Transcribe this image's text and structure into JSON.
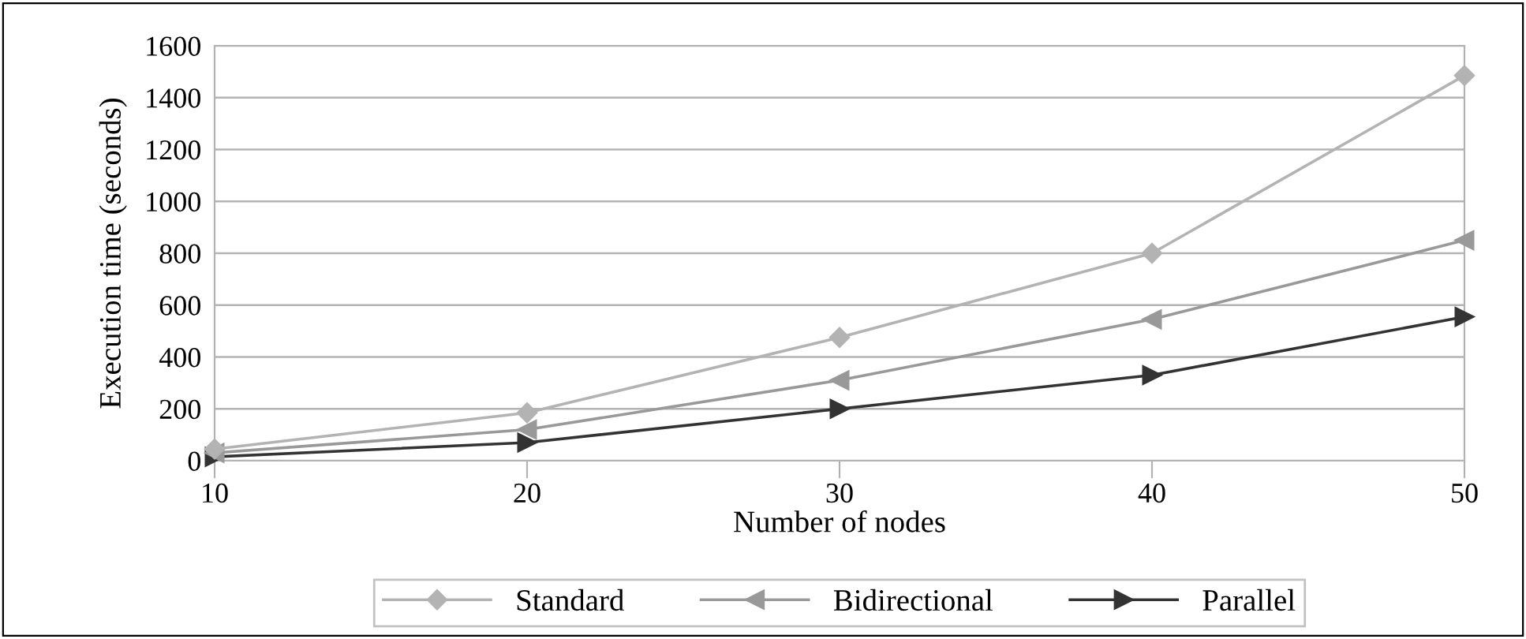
{
  "chart_data": {
    "type": "line",
    "xlabel": "Number of nodes",
    "ylabel": "Execution time (seconds)",
    "x": [
      10,
      20,
      30,
      40,
      50
    ],
    "series": [
      {
        "name": "Standard",
        "color": "#b3b3b3",
        "marker": "diamond",
        "values": [
          45,
          185,
          475,
          800,
          1485
        ]
      },
      {
        "name": "Bidirectional",
        "color": "#999999",
        "marker": "triangle-left",
        "values": [
          30,
          120,
          310,
          545,
          850
        ]
      },
      {
        "name": "Parallel",
        "color": "#333333",
        "marker": "triangle-right",
        "values": [
          15,
          70,
          200,
          330,
          555
        ]
      }
    ],
    "xlim": [
      10,
      50
    ],
    "xticks": [
      10,
      20,
      30,
      40,
      50
    ],
    "ylim": [
      0,
      1600
    ],
    "yticks": [
      0,
      200,
      400,
      600,
      800,
      1000,
      1200,
      1400,
      1600
    ],
    "grid": "y",
    "legend": "bottom",
    "line_style": "solid"
  }
}
